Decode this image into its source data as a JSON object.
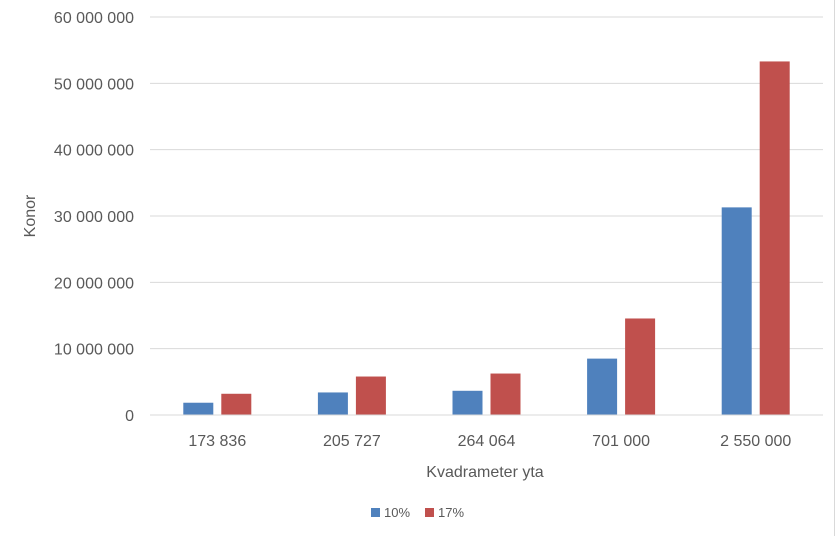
{
  "chart_data": {
    "type": "bar",
    "title": "",
    "xlabel": "Kvadrameter yta",
    "ylabel": "Konor",
    "categories": [
      "173 836",
      "205 727",
      "264 064",
      "701 000",
      "2 550 000"
    ],
    "series": [
      {
        "name": "10%",
        "color": "#4f81bd",
        "values": [
          1850000,
          3400000,
          3650000,
          8500000,
          31300000
        ]
      },
      {
        "name": "17%",
        "color": "#c0504d",
        "values": [
          3200000,
          5800000,
          6250000,
          14550000,
          53300000
        ]
      }
    ],
    "ylim": [
      0,
      60000000
    ],
    "yticks": [
      0,
      10000000,
      20000000,
      30000000,
      40000000,
      50000000,
      60000000
    ],
    "ytick_labels": [
      "0",
      "10 000 000",
      "20 000 000",
      "30 000 000",
      "40 000 000",
      "50 000 000",
      "60 000 000"
    ],
    "grid": true,
    "legend_position": "bottom"
  }
}
